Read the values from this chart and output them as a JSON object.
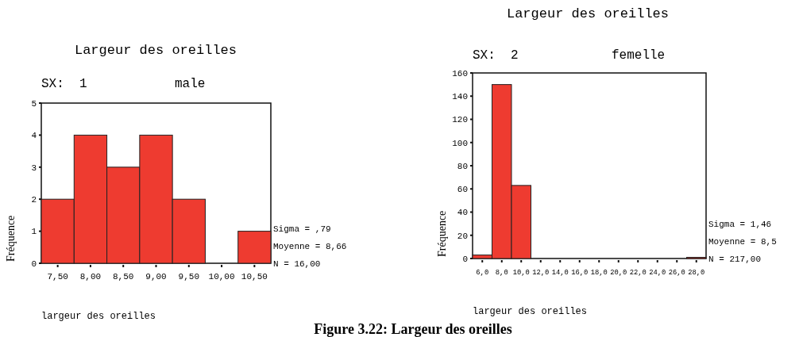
{
  "chart_data": [
    {
      "type": "histogram",
      "title": "Largeur des oreilles",
      "subtitle": "SX:  1",
      "xlabel": "largeur des oreilles",
      "ylabel": "Fréquence",
      "color": "#ee3b30",
      "bins": [
        7.25,
        7.75,
        8.25,
        8.75,
        9.25,
        9.75,
        10.25,
        10.75
      ],
      "values": [
        2,
        4,
        3,
        4,
        2,
        0,
        1
      ],
      "xlim": [
        7.25,
        10.75
      ],
      "xticks": [
        {
          "value": 7.5,
          "label": "7,50"
        },
        {
          "value": 8,
          "label": "8,00"
        },
        {
          "value": 8.5,
          "label": "8,50"
        },
        {
          "value": 9,
          "label": "9,00"
        },
        {
          "value": 9.5,
          "label": "9,50"
        },
        {
          "value": 10,
          "label": "10,00"
        },
        {
          "value": 10.5,
          "label": "10,50"
        }
      ],
      "ylim": [
        0,
        5
      ],
      "yticks": [
        0,
        1,
        2,
        3,
        4,
        5
      ],
      "grid": false,
      "annotations": [
        "male",
        "Sigma = ,79",
        "Moyenne = 8,66",
        "N = 16,00",
        "Figure 3.22: Largeur des oreilles"
      ]
    },
    {
      "type": "histogram",
      "title": "Largeur des oreilles",
      "subtitle": "SX:  2",
      "xlabel": "largeur des oreilles",
      "ylabel": "Fréquence",
      "color": "#ee3b30",
      "bins": [
        5,
        7,
        9,
        11,
        13,
        15,
        17,
        19,
        21,
        23,
        25,
        27,
        29
      ],
      "values": [
        3,
        150,
        63,
        0,
        0,
        0,
        0,
        0,
        0,
        0,
        0,
        1
      ],
      "xlim": [
        5,
        29
      ],
      "xticks": [
        {
          "value": 6,
          "label": "6,0"
        },
        {
          "value": 8,
          "label": "8,0"
        },
        {
          "value": 10,
          "label": "10,0"
        },
        {
          "value": 12,
          "label": "12,0"
        },
        {
          "value": 14,
          "label": "14,0"
        },
        {
          "value": 16,
          "label": "16,0"
        },
        {
          "value": 18,
          "label": "18,0"
        },
        {
          "value": 20,
          "label": "20,0"
        },
        {
          "value": 22,
          "label": "22,0"
        },
        {
          "value": 24,
          "label": "24,0"
        },
        {
          "value": 26,
          "label": "26,0"
        },
        {
          "value": 28,
          "label": "28,0"
        }
      ],
      "ylim": [
        0,
        160
      ],
      "yticks": [
        0,
        20,
        40,
        60,
        80,
        100,
        120,
        140,
        160
      ],
      "grid": false,
      "annotations": [
        "femelle",
        "Sigma = 1,46",
        "Moyenne = 8,5",
        "N = 217,00"
      ]
    }
  ]
}
